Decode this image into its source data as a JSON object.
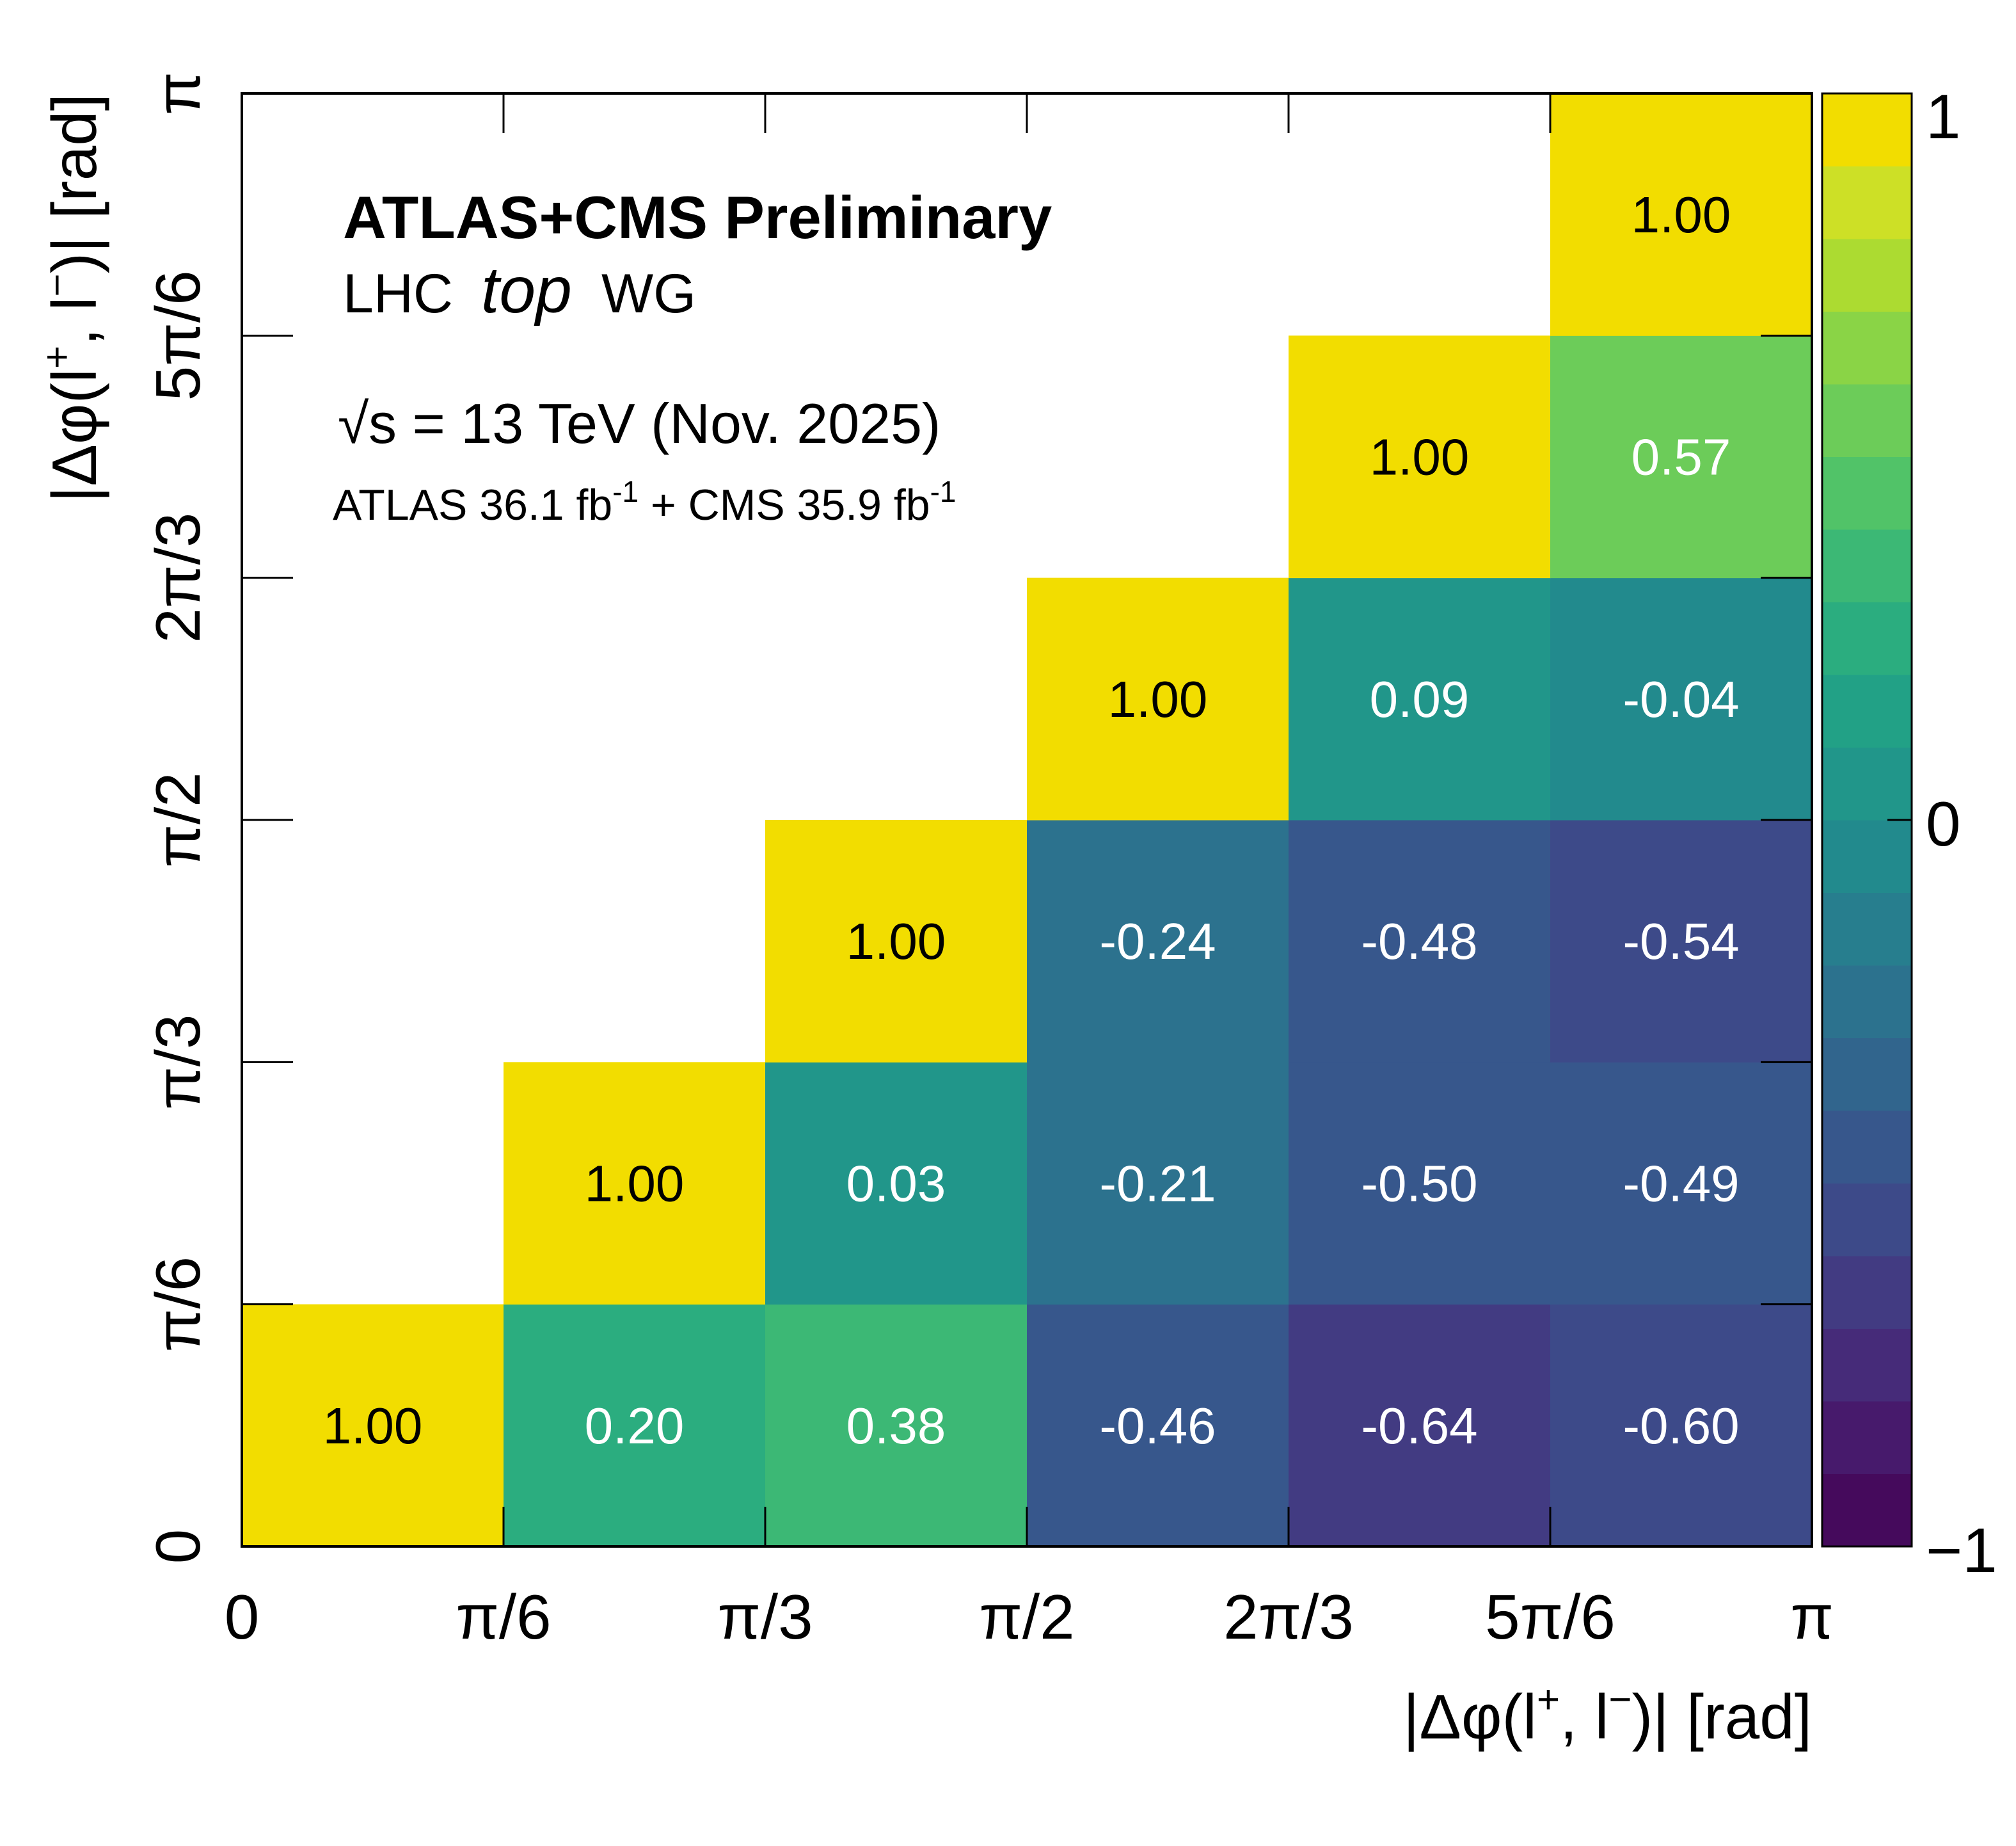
{
  "chart_data": {
    "type": "heatmap",
    "title": "ATLAS+CMS Preliminary",
    "subtitle_lhc": "LHC",
    "subtitle_top": "top",
    "subtitle_wg": "WG",
    "energy_sqrt": "√",
    "energy_label": "s = 13 TeV (Nov. 2025)",
    "lumi_label_parts": [
      "ATLAS 36.1 fb",
      "-1",
      " + CMS 35.9 fb",
      "-1"
    ],
    "xlabel": "|Δφ(l+, l−)| [rad]",
    "ylabel": "|Δφ(l+, l−)| [rad]",
    "axis_label_parts": [
      "|Δφ(l",
      "+",
      ", l",
      "−",
      ")| [rad]"
    ],
    "x_tick_labels": [
      "0",
      "π/6",
      "π/3",
      "π/2",
      "2π/3",
      "5π/6",
      "π"
    ],
    "y_tick_labels": [
      "0",
      "π/6",
      "π/3",
      "π/2",
      "2π/3",
      "5π/6",
      "π"
    ],
    "xlim": [
      0,
      3.14159
    ],
    "ylim": [
      0,
      3.14159
    ],
    "zlim": [
      -1,
      1
    ],
    "colorbar_tick_labels": [
      "1",
      "0",
      "−1"
    ],
    "colorbar_levels": 20,
    "colors": {
      "high": "#f2dd00",
      "low": "#221a3e",
      "text_dark": "#000000",
      "text_light": "#ffffff"
    },
    "values": [
      [
        1.0,
        0.2,
        0.38,
        -0.46,
        -0.64,
        -0.6
      ],
      [
        null,
        1.0,
        0.03,
        -0.21,
        -0.5,
        -0.49
      ],
      [
        null,
        null,
        1.0,
        -0.24,
        -0.48,
        -0.54
      ],
      [
        null,
        null,
        null,
        1.0,
        0.09,
        -0.04
      ],
      [
        null,
        null,
        null,
        null,
        1.0,
        0.57
      ],
      [
        null,
        null,
        null,
        null,
        null,
        1.0
      ]
    ]
  }
}
